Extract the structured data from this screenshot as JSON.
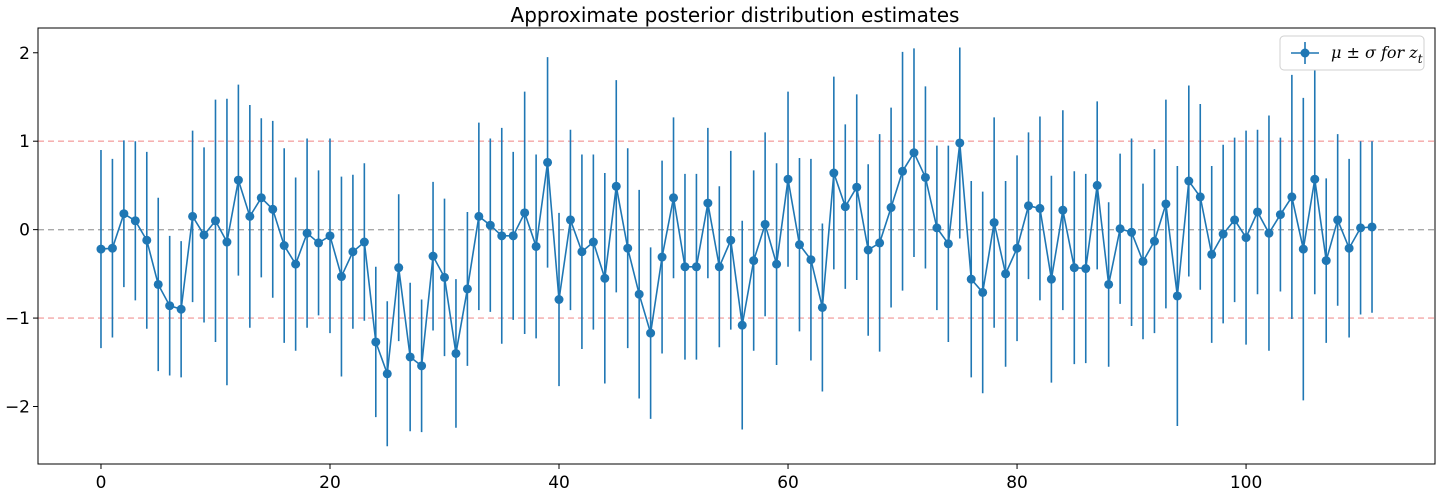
{
  "chart_data": {
    "type": "errorbar-line",
    "title": "Approximate posterior distribution estimates",
    "xlabel": "",
    "ylabel": "",
    "xlim": [
      -5.5,
      116.5
    ],
    "ylim": [
      -2.65,
      2.28
    ],
    "xticks": [
      0,
      20,
      40,
      60,
      80,
      100
    ],
    "yticks": [
      -2,
      -1,
      0,
      1,
      2
    ],
    "ytick_labels": [
      "−2",
      "−1",
      "0",
      "1",
      "2"
    ],
    "reference_lines": [
      {
        "y": 1,
        "color": "#f4a6a6",
        "style": "dashed"
      },
      {
        "y": 0,
        "color": "#a9a9a9",
        "style": "dashed"
      },
      {
        "y": -1,
        "color": "#f4a6a6",
        "style": "dashed"
      }
    ],
    "legend": {
      "label_main": "μ ± σ for z",
      "label_sub": "t",
      "position": "top-right"
    },
    "series_color": "#1f77b4",
    "x": [
      0,
      1,
      2,
      3,
      4,
      5,
      6,
      7,
      8,
      9,
      10,
      11,
      12,
      13,
      14,
      15,
      16,
      17,
      18,
      19,
      20,
      21,
      22,
      23,
      24,
      25,
      26,
      27,
      28,
      29,
      30,
      31,
      32,
      33,
      34,
      35,
      36,
      37,
      38,
      39,
      40,
      41,
      42,
      43,
      44,
      45,
      46,
      47,
      48,
      49,
      50,
      51,
      52,
      53,
      54,
      55,
      56,
      57,
      58,
      59,
      60,
      61,
      62,
      63,
      64,
      65,
      66,
      67,
      68,
      69,
      70,
      71,
      72,
      73,
      74,
      75,
      76,
      77,
      78,
      79,
      80,
      81,
      82,
      83,
      84,
      85,
      86,
      87,
      88,
      89,
      90,
      91,
      92,
      93,
      94,
      95,
      96,
      97,
      98,
      99,
      100,
      101,
      102,
      103,
      104,
      105,
      106,
      107,
      108,
      109,
      110,
      111
    ],
    "mu": [
      -0.22,
      -0.21,
      0.18,
      0.1,
      -0.12,
      -0.62,
      -0.86,
      -0.9,
      0.15,
      -0.06,
      0.1,
      -0.14,
      0.56,
      0.15,
      0.36,
      0.23,
      -0.18,
      -0.39,
      -0.04,
      -0.15,
      -0.07,
      -0.53,
      -0.25,
      -0.14,
      -1.27,
      -1.63,
      -0.43,
      -1.44,
      -1.54,
      -0.3,
      -0.54,
      -1.4,
      -0.67,
      0.15,
      0.05,
      -0.07,
      -0.07,
      0.19,
      -0.19,
      0.76,
      -0.79,
      0.11,
      -0.25,
      -0.14,
      -0.55,
      0.49,
      -0.21,
      -0.73,
      -1.17,
      -0.31,
      0.36,
      -0.42,
      -0.42,
      0.3,
      -0.42,
      -0.12,
      -1.08,
      -0.35,
      0.06,
      -0.39,
      0.57,
      -0.17,
      -0.34,
      -0.88,
      0.64,
      0.26,
      0.48,
      -0.23,
      -0.15,
      0.25,
      0.66,
      0.87,
      0.59,
      0.02,
      -0.16,
      0.98,
      -0.56,
      -0.71,
      0.08,
      -0.5,
      -0.21,
      0.27,
      0.24,
      -0.56,
      0.22,
      -0.43,
      -0.44,
      0.5,
      -0.62,
      0.01,
      -0.03,
      -0.36,
      -0.13,
      0.29,
      -0.75,
      0.55,
      0.37,
      -0.28,
      -0.05,
      0.11,
      -0.09,
      0.2,
      -0.04,
      0.17,
      0.37,
      -0.22,
      0.57,
      -0.35,
      0.11,
      -0.21,
      0.02,
      0.03
    ],
    "sigma": [
      1.12,
      1.01,
      0.83,
      0.9,
      1.0,
      0.98,
      0.79,
      0.77,
      0.97,
      0.99,
      1.37,
      1.62,
      1.08,
      1.26,
      0.9,
      1.0,
      1.1,
      0.98,
      1.07,
      0.82,
      1.1,
      1.13,
      0.87,
      0.89,
      0.85,
      0.82,
      0.83,
      0.84,
      0.75,
      0.84,
      0.89,
      0.84,
      0.87,
      1.06,
      0.98,
      1.22,
      0.95,
      1.37,
      1.04,
      1.19,
      0.98,
      1.02,
      1.1,
      0.99,
      1.19,
      1.2,
      1.13,
      1.18,
      0.97,
      1.09,
      0.91,
      1.05,
      1.05,
      0.85,
      0.91,
      1.01,
      1.18,
      1.02,
      1.04,
      1.14,
      0.99,
      0.98,
      1.14,
      0.95,
      1.09,
      0.93,
      1.05,
      0.97,
      1.23,
      1.13,
      1.35,
      1.18,
      1.03,
      0.93,
      1.11,
      1.08,
      1.11,
      1.14,
      1.19,
      1.05,
      1.05,
      0.83,
      1.04,
      1.17,
      1.13,
      1.09,
      1.07,
      0.95,
      0.93,
      0.85,
      1.06,
      0.88,
      1.04,
      1.18,
      1.47,
      1.08,
      1.05,
      1.0,
      1.01,
      0.93,
      1.21,
      0.93,
      1.33,
      0.87,
      1.38,
      1.71,
      1.3,
      0.93,
      0.97,
      1.01,
      0.98,
      0.97
    ]
  }
}
